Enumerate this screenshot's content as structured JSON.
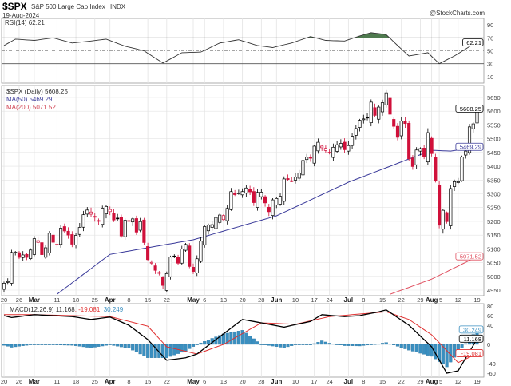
{
  "header": {
    "symbol": "$SPX",
    "name": "S&P 500 Large Cap Index",
    "exchange": "INDX",
    "date": "19-Aug-2024",
    "watermark": "@StockCharts.com"
  },
  "colors": {
    "up": "#000000",
    "down": "#d0103a",
    "ma50": "#3a3a9a",
    "ma200": "#e05060",
    "macd": "#000000",
    "signal": "#e03030",
    "histogram": "#3a8fc0",
    "rsi_fill": "#4f7a4f",
    "grid": "#e3e3e3"
  },
  "chart_data": [
    {
      "type": "line",
      "title": "RSI(14) 62.21",
      "legend": "RSI(14) 62.21",
      "current": "62.21",
      "ylim": [
        0,
        100
      ],
      "yticks": [
        "90",
        "70",
        "50",
        "30",
        "10"
      ],
      "overbought": 70,
      "oversold": 30,
      "values": [
        [
          "02-20",
          58
        ],
        [
          "02-23",
          68
        ],
        [
          "03-01",
          66
        ],
        [
          "03-08",
          70
        ],
        [
          "03-15",
          62
        ],
        [
          "03-22",
          65
        ],
        [
          "03-28",
          68
        ],
        [
          "04-05",
          57
        ],
        [
          "04-12",
          50
        ],
        [
          "04-19",
          31
        ],
        [
          "04-26",
          47
        ],
        [
          "05-03",
          48
        ],
        [
          "05-10",
          62
        ],
        [
          "05-17",
          67
        ],
        [
          "05-24",
          58
        ],
        [
          "05-31",
          55
        ],
        [
          "06-07",
          62
        ],
        [
          "06-14",
          72
        ],
        [
          "06-21",
          66
        ],
        [
          "06-28",
          65
        ],
        [
          "07-05",
          73
        ],
        [
          "07-10",
          78
        ],
        [
          "07-16",
          75
        ],
        [
          "07-19",
          58
        ],
        [
          "07-24",
          42
        ],
        [
          "07-31",
          47
        ],
        [
          "08-05",
          30
        ],
        [
          "08-09",
          42
        ],
        [
          "08-16",
          60
        ],
        [
          "08-19",
          62.21
        ]
      ]
    },
    {
      "type": "candlestick",
      "legend": "$SPX (Daily) 5608.25",
      "current": "5608.25",
      "ylim": [
        4930,
        5680
      ],
      "yticks": [
        "5650",
        "5600",
        "5550",
        "5500",
        "5450",
        "5400",
        "5350",
        "5300",
        "5250",
        "5200",
        "5150",
        "5100",
        "5050",
        "5000",
        "4950"
      ],
      "closes": [
        [
          "02-20",
          4975
        ],
        [
          "02-21",
          4981
        ],
        [
          "02-22",
          5087
        ],
        [
          "02-23",
          5088
        ],
        [
          "02-26",
          5069
        ],
        [
          "02-27",
          5078
        ],
        [
          "02-28",
          5069
        ],
        [
          "02-29",
          5096
        ],
        [
          "03-01",
          5137
        ],
        [
          "03-04",
          5130
        ],
        [
          "03-05",
          5079
        ],
        [
          "03-06",
          5104
        ],
        [
          "03-07",
          5157
        ],
        [
          "03-08",
          5124
        ],
        [
          "03-11",
          5117
        ],
        [
          "03-12",
          5175
        ],
        [
          "03-13",
          5165
        ],
        [
          "03-14",
          5150
        ],
        [
          "03-15",
          5117
        ],
        [
          "03-18",
          5149
        ],
        [
          "03-19",
          5178
        ],
        [
          "03-20",
          5224
        ],
        [
          "03-21",
          5241
        ],
        [
          "03-22",
          5234
        ],
        [
          "03-25",
          5218
        ],
        [
          "03-26",
          5203
        ],
        [
          "03-27",
          5248
        ],
        [
          "03-28",
          5254
        ],
        [
          "04-01",
          5243
        ],
        [
          "04-02",
          5205
        ],
        [
          "04-03",
          5211
        ],
        [
          "04-04",
          5147
        ],
        [
          "04-05",
          5204
        ],
        [
          "04-08",
          5202
        ],
        [
          "04-09",
          5209
        ],
        [
          "04-10",
          5161
        ],
        [
          "04-11",
          5199
        ],
        [
          "04-12",
          5123
        ],
        [
          "04-15",
          5061
        ],
        [
          "04-16",
          5051
        ],
        [
          "04-17",
          5022
        ],
        [
          "04-18",
          5011
        ],
        [
          "04-19",
          4967
        ],
        [
          "04-22",
          5010
        ],
        [
          "04-23",
          5070
        ],
        [
          "04-24",
          5072
        ],
        [
          "04-25",
          5048
        ],
        [
          "04-26",
          5100
        ],
        [
          "04-29",
          5116
        ],
        [
          "04-30",
          5036
        ],
        [
          "05-01",
          5018
        ],
        [
          "05-02",
          5064
        ],
        [
          "05-03",
          5128
        ],
        [
          "05-06",
          5181
        ],
        [
          "05-07",
          5187
        ],
        [
          "05-08",
          5188
        ],
        [
          "05-09",
          5214
        ],
        [
          "05-10",
          5223
        ],
        [
          "05-13",
          5221
        ],
        [
          "05-14",
          5247
        ],
        [
          "05-15",
          5308
        ],
        [
          "05-16",
          5297
        ],
        [
          "05-17",
          5303
        ],
        [
          "05-20",
          5308
        ],
        [
          "05-21",
          5321
        ],
        [
          "05-22",
          5307
        ],
        [
          "05-23",
          5268
        ],
        [
          "05-24",
          5305
        ],
        [
          "05-28",
          5306
        ],
        [
          "05-29",
          5267
        ],
        [
          "05-30",
          5235
        ],
        [
          "05-31",
          5278
        ],
        [
          "06-03",
          5283
        ],
        [
          "06-04",
          5291
        ],
        [
          "06-05",
          5354
        ],
        [
          "06-06",
          5352
        ],
        [
          "06-07",
          5347
        ],
        [
          "06-10",
          5361
        ],
        [
          "06-11",
          5375
        ],
        [
          "06-12",
          5421
        ],
        [
          "06-13",
          5433
        ],
        [
          "06-14",
          5431
        ],
        [
          "06-17",
          5473
        ],
        [
          "06-18",
          5487
        ],
        [
          "06-20",
          5473
        ],
        [
          "06-21",
          5465
        ],
        [
          "06-24",
          5448
        ],
        [
          "06-25",
          5469
        ],
        [
          "06-26",
          5478
        ],
        [
          "06-27",
          5483
        ],
        [
          "06-28",
          5460
        ],
        [
          "07-01",
          5475
        ],
        [
          "07-02",
          5509
        ],
        [
          "07-03",
          5537
        ],
        [
          "07-05",
          5567
        ],
        [
          "07-08",
          5572
        ],
        [
          "07-09",
          5577
        ],
        [
          "07-10",
          5633
        ],
        [
          "07-11",
          5585
        ],
        [
          "07-12",
          5615
        ],
        [
          "07-15",
          5631
        ],
        [
          "07-16",
          5667
        ],
        [
          "07-17",
          5589
        ],
        [
          "07-18",
          5545
        ],
        [
          "07-19",
          5505
        ],
        [
          "07-22",
          5564
        ],
        [
          "07-23",
          5555
        ],
        [
          "07-24",
          5427
        ],
        [
          "07-25",
          5399
        ],
        [
          "07-26",
          5459
        ],
        [
          "07-29",
          5464
        ],
        [
          "07-30",
          5436
        ],
        [
          "07-31",
          5522
        ],
        [
          "08-01",
          5446
        ],
        [
          "08-02",
          5346
        ],
        [
          "08-05",
          5186
        ],
        [
          "08-06",
          5240
        ],
        [
          "08-07",
          5199
        ],
        [
          "08-08",
          5319
        ],
        [
          "08-09",
          5344
        ],
        [
          "08-12",
          5344
        ],
        [
          "08-13",
          5434
        ],
        [
          "08-14",
          5455
        ],
        [
          "08-15",
          5543
        ],
        [
          "08-16",
          5554
        ],
        [
          "08-19",
          5608.25
        ]
      ],
      "overlays": [
        {
          "name": "MA(50) 5469.29",
          "current": "5469.29",
          "values": [
            [
              "03-11",
              4935
            ],
            [
              "04-01",
              5080
            ],
            [
              "05-01",
              5133
            ],
            [
              "06-03",
              5220
            ],
            [
              "07-01",
              5342
            ],
            [
              "08-01",
              5458
            ],
            [
              "08-08",
              5455
            ],
            [
              "08-19",
              5469.29
            ]
          ]
        },
        {
          "name": "MA(200) 5071.52",
          "current": "5071.52",
          "values": [
            [
              "07-17",
              4935
            ],
            [
              "08-01",
              4990
            ],
            [
              "08-19",
              5071.52
            ]
          ]
        }
      ]
    },
    {
      "type": "line",
      "legend_name": "MACD(12,26,9)",
      "legend_macd": "11.168",
      "legend_signal": ", -19.081",
      "legend_hist": ", 30.249",
      "ylim": [
        -70,
        82
      ],
      "yticks": [
        "80",
        "60",
        "40",
        "0",
        "-40",
        "-60"
      ],
      "macd": [
        [
          "02-20",
          60
        ],
        [
          "02-22",
          56
        ],
        [
          "03-01",
          62
        ],
        [
          "03-15",
          58
        ],
        [
          "03-22",
          52
        ],
        [
          "04-01",
          57
        ],
        [
          "04-08",
          40
        ],
        [
          "04-15",
          10
        ],
        [
          "04-22",
          -33
        ],
        [
          "04-29",
          -28
        ],
        [
          "05-02",
          -20
        ],
        [
          "05-09",
          10
        ],
        [
          "05-20",
          52
        ],
        [
          "05-28",
          45
        ],
        [
          "06-05",
          36
        ],
        [
          "06-14",
          48
        ],
        [
          "06-20",
          62
        ],
        [
          "06-28",
          58
        ],
        [
          "07-05",
          60
        ],
        [
          "07-12",
          68
        ],
        [
          "07-16",
          72
        ],
        [
          "07-24",
          40
        ],
        [
          "08-01",
          -5
        ],
        [
          "08-07",
          -60
        ],
        [
          "08-12",
          -55
        ],
        [
          "08-19",
          11.168
        ]
      ],
      "signal": [
        [
          "02-20",
          62
        ],
        [
          "03-01",
          62
        ],
        [
          "04-01",
          58
        ],
        [
          "04-15",
          38
        ],
        [
          "04-22",
          -5
        ],
        [
          "05-02",
          -20
        ],
        [
          "05-13",
          0
        ],
        [
          "05-28",
          45
        ],
        [
          "06-10",
          42
        ],
        [
          "06-24",
          58
        ],
        [
          "07-16",
          68
        ],
        [
          "07-24",
          52
        ],
        [
          "08-01",
          20
        ],
        [
          "08-12",
          -38
        ],
        [
          "08-19",
          -19.081
        ]
      ],
      "values_shown": {
        "macd": "11.168",
        "signal": "-19.081",
        "histogram": "30.249"
      }
    },
    {
      "type": "axis",
      "xticks": [
        [
          "02-20",
          "20"
        ],
        [
          "02-26",
          "26"
        ],
        [
          "03-01",
          "Mar"
        ],
        [
          "03-11",
          "11"
        ],
        [
          "03-18",
          "18"
        ],
        [
          "03-25",
          "25"
        ],
        [
          "04-01",
          "Apr"
        ],
        [
          "04-08",
          "8"
        ],
        [
          "04-15",
          "15"
        ],
        [
          "04-22",
          "22"
        ],
        [
          "05-01",
          "May"
        ],
        [
          "05-06",
          "6"
        ],
        [
          "05-13",
          "13"
        ],
        [
          "05-20",
          "20"
        ],
        [
          "05-28",
          "28"
        ],
        [
          "06-03",
          "Jun"
        ],
        [
          "06-10",
          "10"
        ],
        [
          "06-17",
          "17"
        ],
        [
          "06-24",
          "24"
        ],
        [
          "07-01",
          "Jul"
        ],
        [
          "07-08",
          "8"
        ],
        [
          "07-15",
          "15"
        ],
        [
          "07-22",
          "22"
        ],
        [
          "07-29",
          "29"
        ],
        [
          "08-01",
          "Aug"
        ],
        [
          "08-05",
          "5"
        ],
        [
          "08-12",
          "12"
        ],
        [
          "08-19",
          "19"
        ]
      ]
    }
  ]
}
